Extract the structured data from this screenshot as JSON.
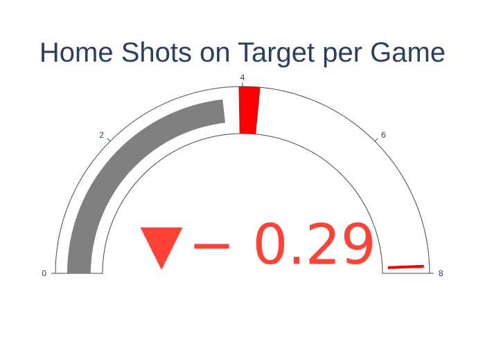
{
  "chart_data": {
    "type": "gauge",
    "title": "Home Shots on Target per Game",
    "value": 3.71,
    "reference": 4.0,
    "delta": {
      "value": -0.29,
      "display": "− 0.29",
      "direction": "decreasing",
      "symbol": "▼"
    },
    "axis": {
      "range": [
        0,
        8
      ],
      "ticks": [
        0,
        2,
        4,
        6,
        8
      ],
      "tick_labels": [
        "0",
        "2",
        "4",
        "6",
        "8"
      ]
    },
    "bar_color": "#808080",
    "steps": [
      {
        "range": [
          3.95,
          4.24
        ],
        "color": "#ff0000"
      }
    ],
    "threshold": {
      "value": 7.9,
      "color": "#ff0000"
    },
    "colors": {
      "title": "#2a3f5f",
      "tick": "#2a3f5f",
      "delta_decreasing": "#ff4136",
      "outline": "#444444"
    }
  }
}
